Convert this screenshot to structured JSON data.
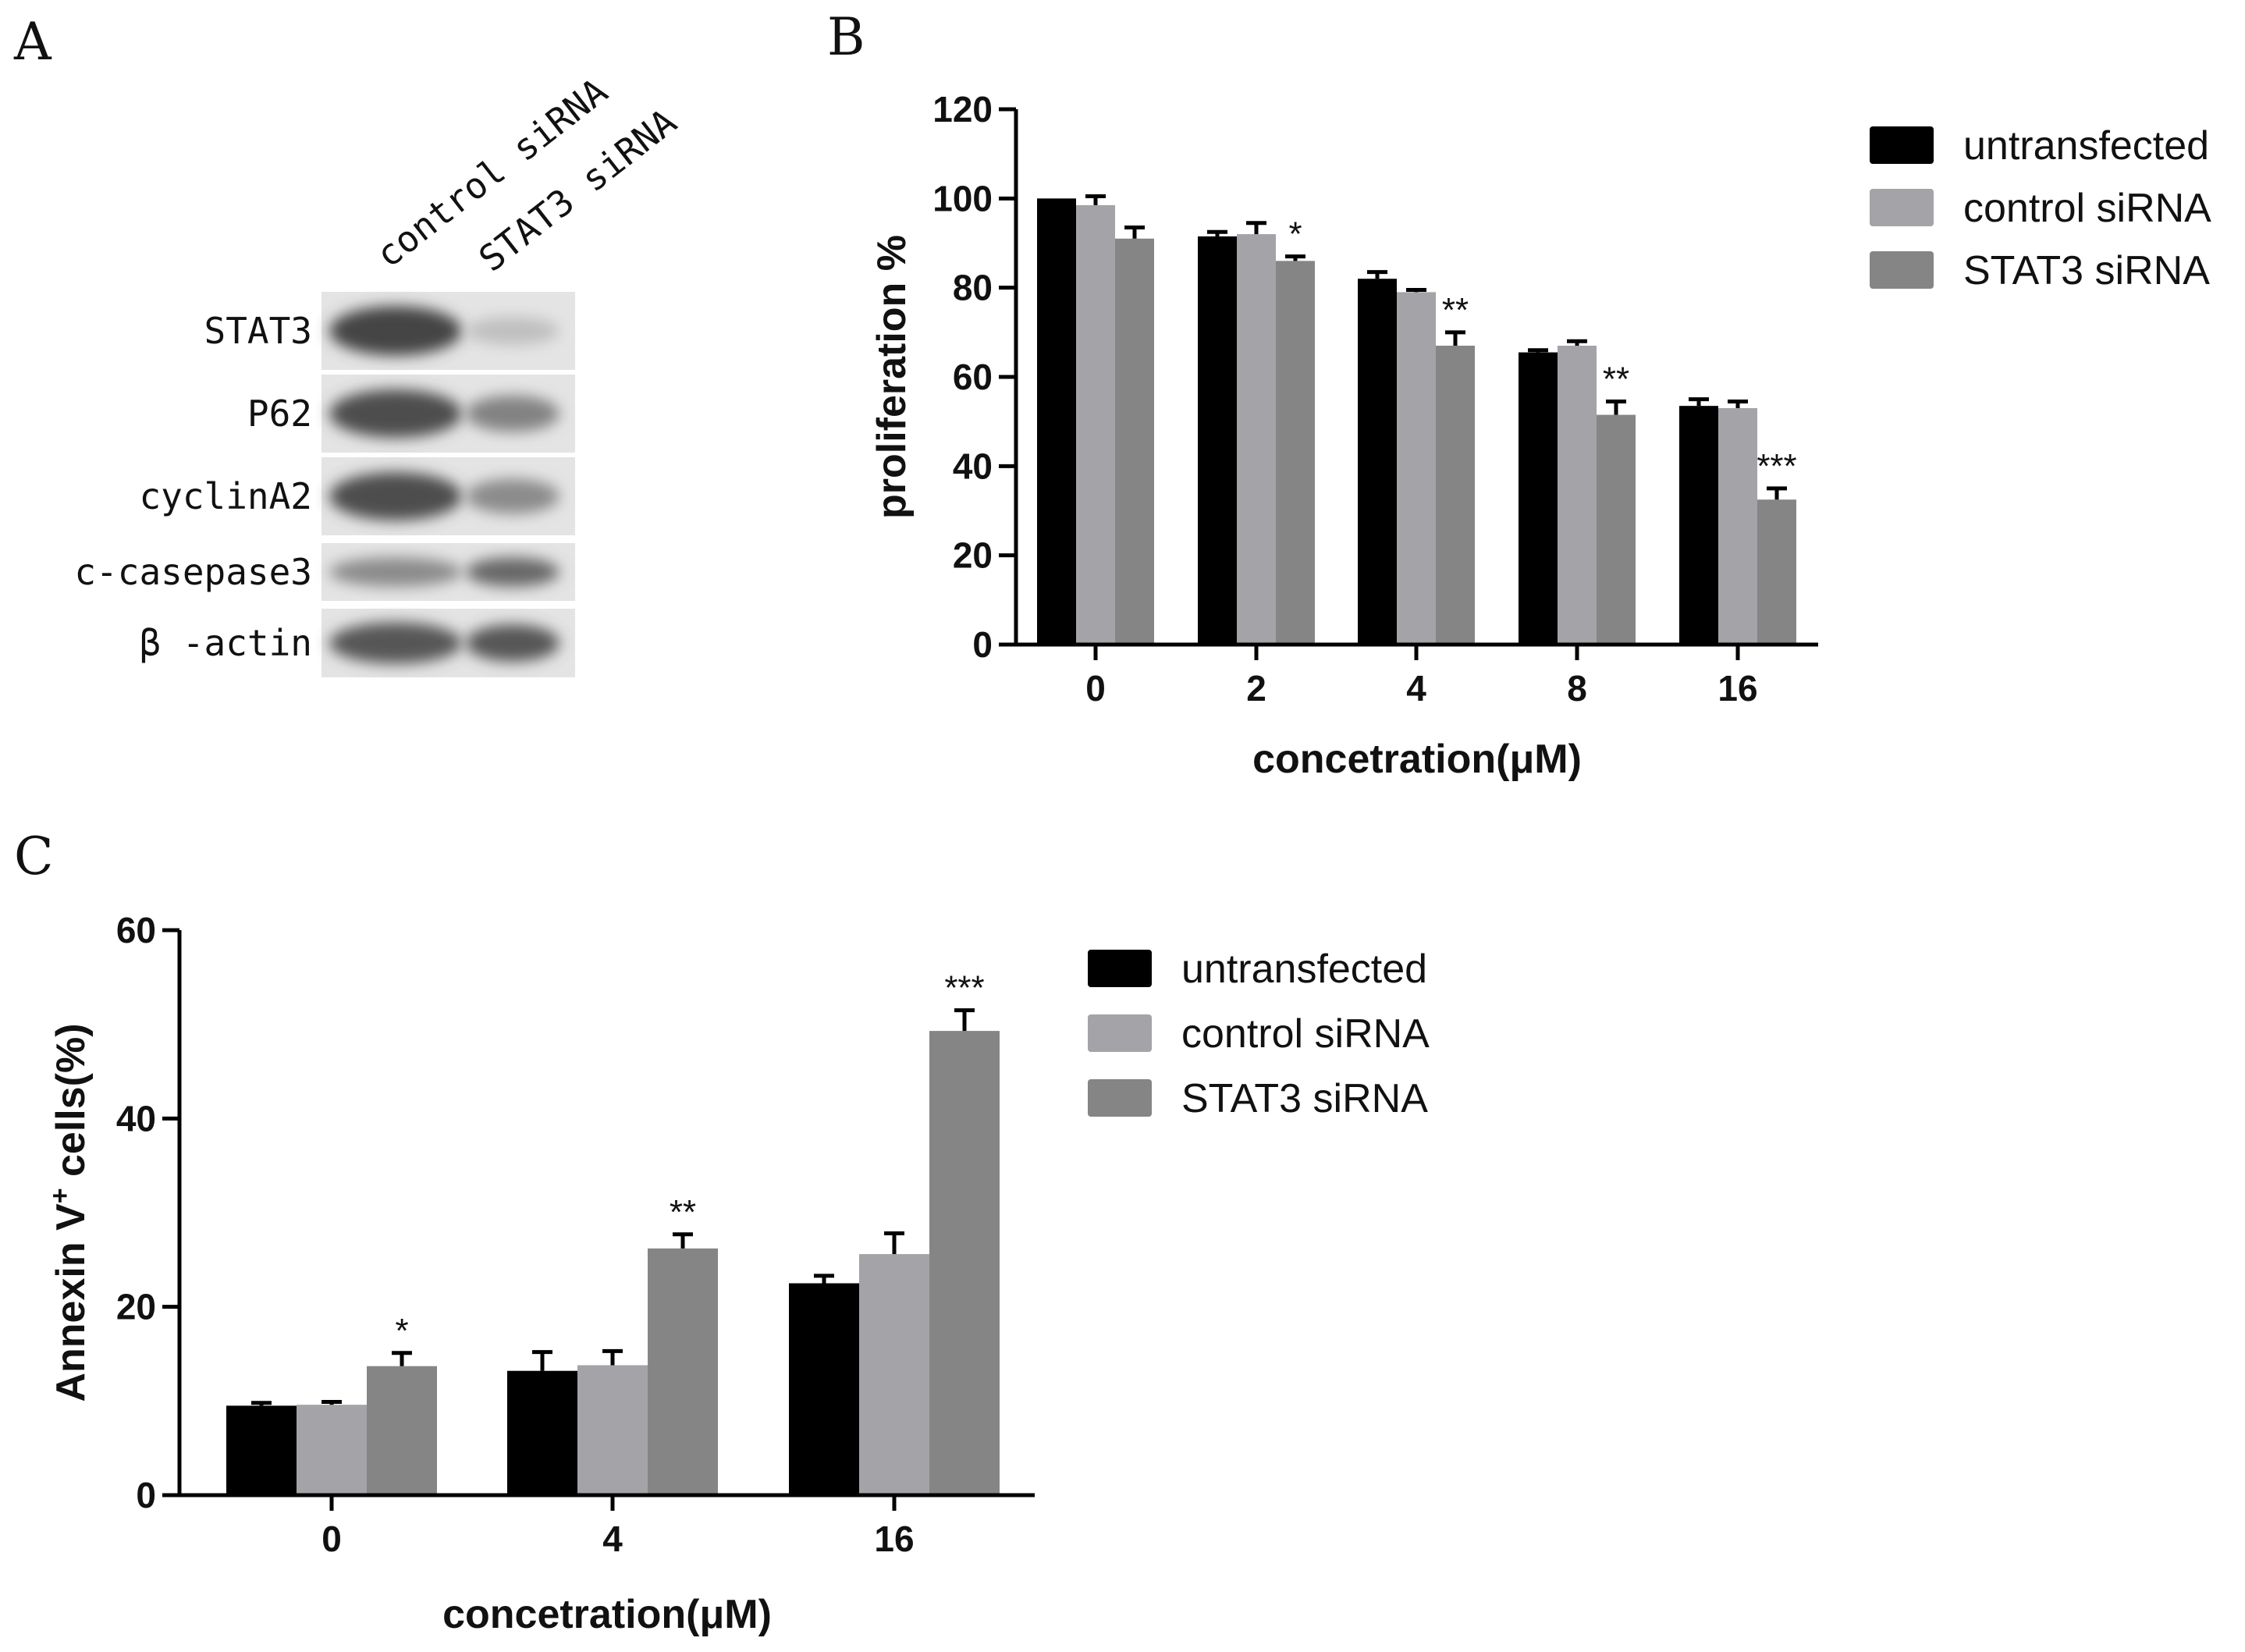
{
  "panels": {
    "A": "A",
    "B": "B",
    "C": "C"
  },
  "western_blot": {
    "lanes": [
      "control siRNA",
      "STAT3 siRNA"
    ],
    "rows": [
      {
        "label": "STAT3",
        "control_intensity": 0.95,
        "stat3_intensity": 0.25
      },
      {
        "label": "P62",
        "control_intensity": 0.9,
        "stat3_intensity": 0.6
      },
      {
        "label": "cyclinA2",
        "control_intensity": 0.9,
        "stat3_intensity": 0.55
      },
      {
        "label": "c-casepase3",
        "control_intensity": 0.55,
        "stat3_intensity": 0.75
      },
      {
        "label": "β -actin",
        "control_intensity": 0.85,
        "stat3_intensity": 0.85
      }
    ]
  },
  "chart_data": [
    {
      "type": "bar",
      "panel": "B",
      "categories": [
        "0",
        "2",
        "4",
        "8",
        "16"
      ],
      "series": [
        {
          "name": "untransfected",
          "color": "#000000",
          "values": [
            100,
            91.5,
            82,
            65.5,
            53.5
          ],
          "errors": [
            0,
            1,
            1.5,
            0.5,
            1.5
          ]
        },
        {
          "name": "control siRNA",
          "color": "#a3a3a8",
          "values": [
            98.5,
            92,
            79,
            67,
            53
          ],
          "errors": [
            2,
            2.5,
            0.5,
            1,
            1.5
          ]
        },
        {
          "name": "STAT3 siRNA",
          "color": "#858585",
          "values": [
            91,
            86,
            67,
            51.5,
            32.5
          ],
          "errors": [
            2.5,
            1,
            3,
            3,
            2.5
          ]
        }
      ],
      "significance": [
        "",
        "*",
        "**",
        "**",
        "***"
      ],
      "xlabel": "concetration(μM)",
      "ylabel": "proliferation %",
      "ylim": [
        0,
        120
      ],
      "yticks": [
        0,
        20,
        40,
        60,
        80,
        100,
        120
      ]
    },
    {
      "type": "bar",
      "panel": "C",
      "categories": [
        "0",
        "4",
        "16"
      ],
      "series": [
        {
          "name": "untransfected",
          "color": "#000000",
          "values": [
            9.5,
            13.2,
            22.5
          ],
          "errors": [
            0.3,
            2,
            0.8
          ]
        },
        {
          "name": "control siRNA",
          "color": "#a3a3a8",
          "values": [
            9.6,
            13.8,
            25.6
          ],
          "errors": [
            0.3,
            1.5,
            2.2
          ]
        },
        {
          "name": "STAT3 siRNA",
          "color": "#858585",
          "values": [
            13.7,
            26.2,
            49.3
          ],
          "errors": [
            1.4,
            1.5,
            2.2
          ]
        }
      ],
      "significance": [
        "*",
        "**",
        "***"
      ],
      "xlabel": "concetration(μM)",
      "ylabel_main": "Annexin V",
      "ylabel_sup": "+",
      "ylabel_tail": " cells(%)",
      "ylim": [
        0,
        60
      ],
      "yticks": [
        0,
        20,
        40,
        60
      ]
    }
  ]
}
